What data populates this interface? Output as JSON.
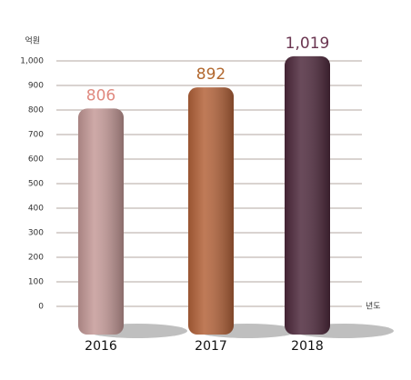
{
  "chart_data": {
    "type": "bar",
    "y_label": "억원",
    "x_label": "년도",
    "categories": [
      "2016",
      "2017",
      "2018"
    ],
    "values": [
      806,
      892,
      1019
    ],
    "value_labels": [
      "806",
      "892",
      "1,019"
    ],
    "colors": [
      "#c59a98",
      "#b4633a",
      "#4f2a3d"
    ],
    "label_colors": [
      "#e0897f",
      "#b2682e",
      "#6a3550"
    ],
    "ylim": [
      0,
      1000
    ],
    "yticks": [
      0,
      100,
      200,
      300,
      400,
      500,
      600,
      700,
      800,
      900,
      {
        "value": 1000,
        "label": "1,000"
      }
    ],
    "grid": true
  }
}
